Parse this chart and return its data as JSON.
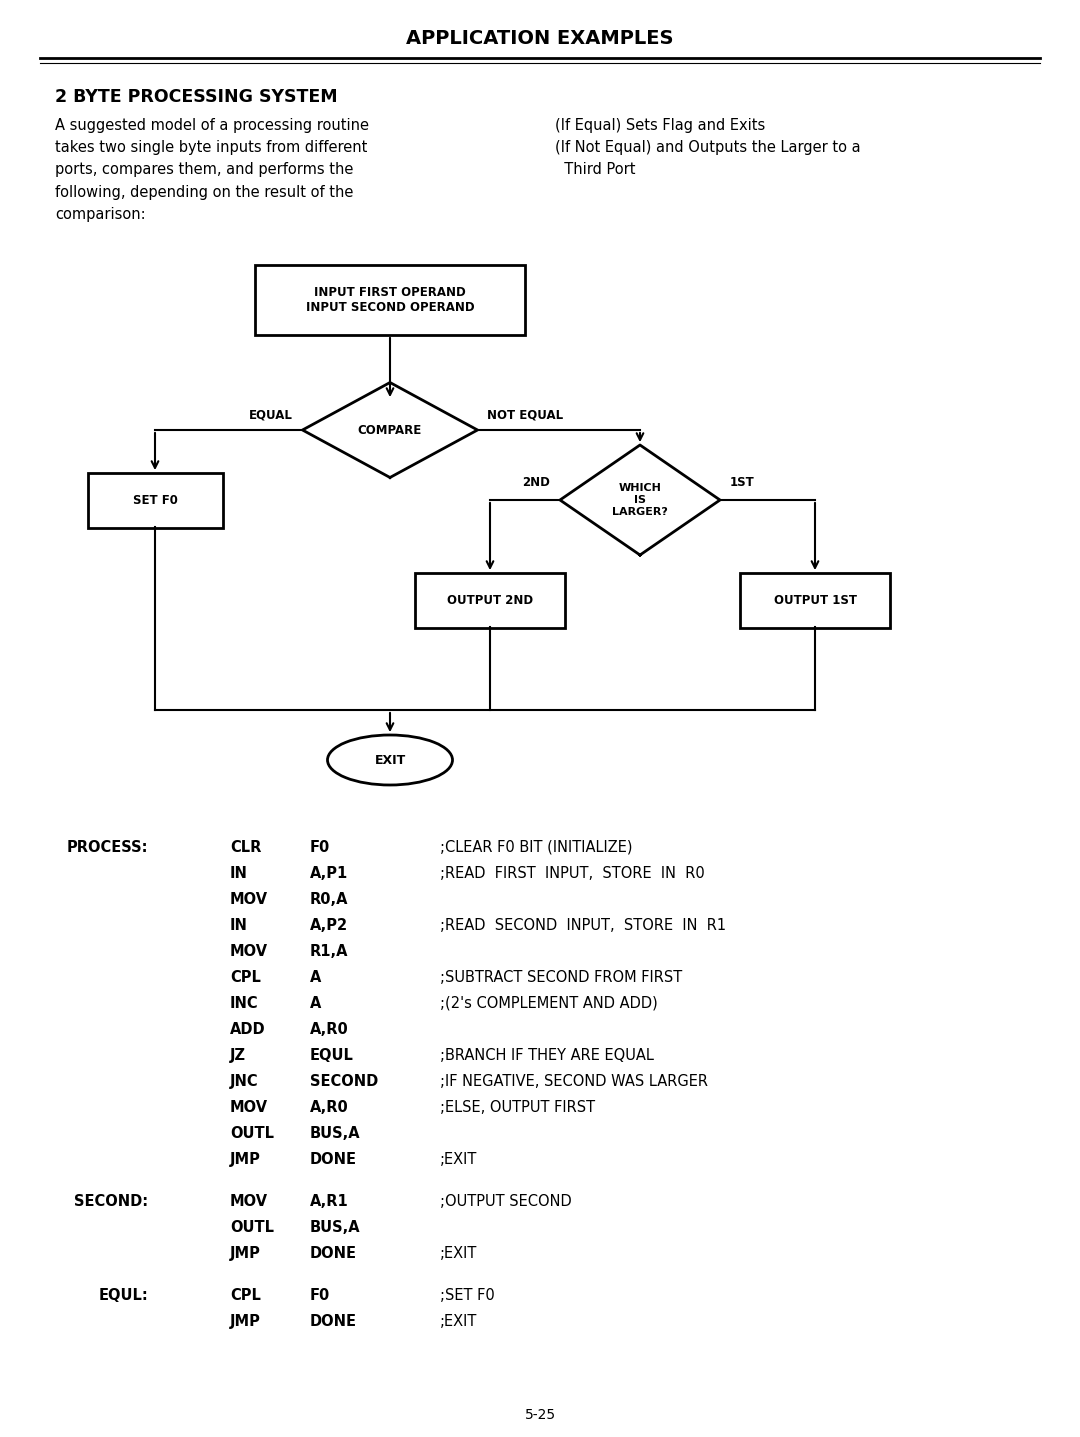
{
  "title": "APPLICATION EXAMPLES",
  "section_title": "2 BYTE PROCESSING SYSTEM",
  "left_text": "A suggested model of a processing routine\ntakes two single byte inputs from different\nports, compares them, and performs the\nfollowing, depending on the result of the\ncomparison:",
  "right_text": "(If Equal) Sets Flag and Exits\n(If Not Equal) and Outputs the Larger to a\n  Third Port",
  "page_number": "5-25",
  "code_lines": [
    [
      "PROCESS:",
      "CLR",
      "F0",
      ";CLEAR F0 BIT (INITIALIZE)"
    ],
    [
      "",
      "IN",
      "A,P1",
      ";READ  FIRST  INPUT,  STORE  IN  R0"
    ],
    [
      "",
      "MOV",
      "R0,A",
      ""
    ],
    [
      "",
      "IN",
      "A,P2",
      ";READ  SECOND  INPUT,  STORE  IN  R1"
    ],
    [
      "",
      "MOV",
      "R1,A",
      ""
    ],
    [
      "",
      "CPL",
      "A",
      ";SUBTRACT SECOND FROM FIRST"
    ],
    [
      "",
      "INC",
      "A",
      ";(2's COMPLEMENT AND ADD)"
    ],
    [
      "",
      "ADD",
      "A,R0",
      ""
    ],
    [
      "",
      "JZ",
      "EQUL",
      ";BRANCH IF THEY ARE EQUAL"
    ],
    [
      "",
      "JNC",
      "SECOND",
      ";IF NEGATIVE, SECOND WAS LARGER"
    ],
    [
      "",
      "MOV",
      "A,R0",
      ";ELSE, OUTPUT FIRST"
    ],
    [
      "",
      "OUTL",
      "BUS,A",
      ""
    ],
    [
      "",
      "JMP",
      "DONE",
      ";EXIT"
    ],
    [
      "SECOND:",
      "MOV",
      "A,R1",
      ";OUTPUT SECOND"
    ],
    [
      "",
      "OUTL",
      "BUS,A",
      ""
    ],
    [
      "",
      "JMP",
      "DONE",
      ";EXIT"
    ],
    [
      "EQUL:",
      "CPL",
      "F0",
      ";SET F0"
    ],
    [
      "",
      "JMP",
      "DONE",
      ";EXIT"
    ]
  ]
}
